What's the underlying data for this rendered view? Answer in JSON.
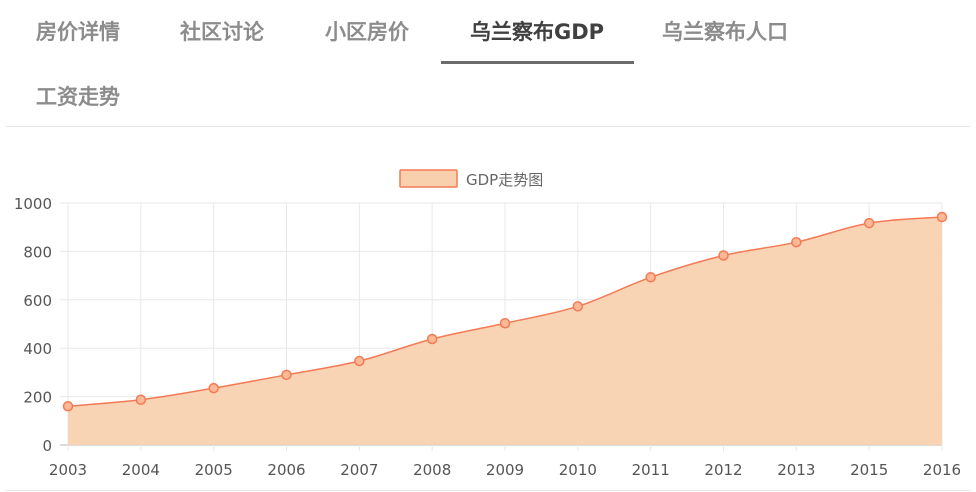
{
  "tabs": [
    {
      "label": "房价详情",
      "active": false
    },
    {
      "label": "社区讨论",
      "active": false
    },
    {
      "label": "小区房价",
      "active": false
    },
    {
      "label": "乌兰察布GDP",
      "active": true
    },
    {
      "label": "乌兰察布人口",
      "active": false
    },
    {
      "label": "工资走势",
      "active": false
    }
  ],
  "chart_data": {
    "type": "area",
    "legend": {
      "label": "GDP走势图",
      "position": "top-center"
    },
    "categories": [
      "2003",
      "2004",
      "2005",
      "2006",
      "2007",
      "2008",
      "2009",
      "2010",
      "2011",
      "2012",
      "2013",
      "2015",
      "2016"
    ],
    "series": [
      {
        "name": "GDP走势图",
        "values": [
          160,
          187,
          235,
          290,
          347,
          438,
          503,
          573,
          693,
          783,
          838,
          917,
          942
        ]
      }
    ],
    "ylim": [
      0,
      1000
    ],
    "yticks": [
      0,
      200,
      400,
      600,
      800,
      1000
    ],
    "grid": true,
    "colors": {
      "line": "#f47a55",
      "fill": "#f9d0ae",
      "point": "#f47a55",
      "point_fill": "#fbb995",
      "legend_fill": "#f9d0ae"
    }
  }
}
